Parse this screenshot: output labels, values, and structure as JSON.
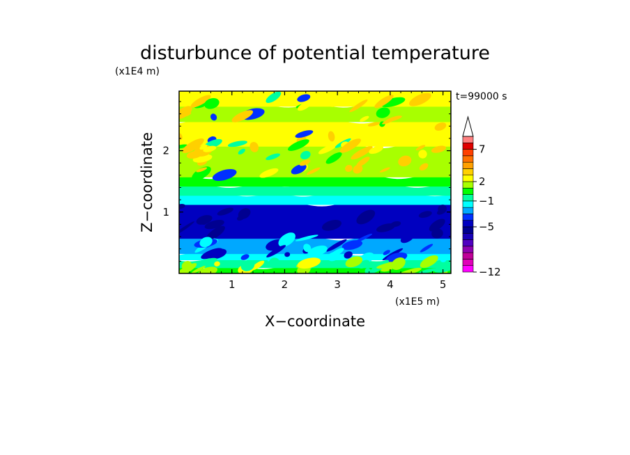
{
  "chart_data": {
    "type": "heatmap",
    "title": "disturbunce of potential temperature",
    "xlabel": "X−coordinate",
    "ylabel": "Z−coordinate",
    "x_unit": "(x1E5 m)",
    "y_unit": "(x1E4 m)",
    "time_label": "t=99000 s",
    "xlim": [
      0,
      5.15
    ],
    "ylim": [
      0,
      2.97
    ],
    "x_ticks": [
      1,
      2,
      3,
      4,
      5
    ],
    "y_ticks": [
      1,
      2
    ],
    "colorbar": {
      "levels": [
        -12,
        -11,
        -10,
        -9,
        -8,
        -7,
        -6,
        -5,
        -4,
        -3,
        -2,
        -1,
        0,
        1,
        2,
        3,
        4,
        5,
        6,
        7,
        8,
        9
      ],
      "tick_labels": [
        "−12",
        "−5",
        "−1",
        "2",
        "7"
      ],
      "tick_values": [
        -12,
        -5,
        -1,
        2,
        7
      ],
      "extend": "max",
      "colors": [
        "#ff00ff",
        "#e000b8",
        "#c00098",
        "#9000b0",
        "#5000c0",
        "#1800b8",
        "#000090",
        "#0000c0",
        "#0030ff",
        "#00a8ff",
        "#00ffff",
        "#00ffa0",
        "#00ff00",
        "#a8ff00",
        "#ffff00",
        "#ffd000",
        "#ffa000",
        "#ff7000",
        "#ff4000",
        "#e00000",
        "#ff8080",
        "#ffc0c0"
      ]
    },
    "layers": [
      {
        "z_from": 0.0,
        "z_to": 0.12,
        "value": 0.5
      },
      {
        "z_from": 0.12,
        "z_to": 0.25,
        "value": -0.5
      },
      {
        "z_from": 0.25,
        "z_to": 0.35,
        "value": -1.5
      },
      {
        "z_from": 0.35,
        "z_to": 0.6,
        "value": -2.5
      },
      {
        "z_from": 0.6,
        "z_to": 1.15,
        "value": -4.5
      },
      {
        "z_from": 1.15,
        "z_to": 1.3,
        "value": -1.5
      },
      {
        "z_from": 1.3,
        "z_to": 1.45,
        "value": -0.5
      },
      {
        "z_from": 1.45,
        "z_to": 1.6,
        "value": 0.5
      },
      {
        "z_from": 1.6,
        "z_to": 2.1,
        "value": 1.5
      },
      {
        "z_from": 2.1,
        "z_to": 2.5,
        "value": 2.5
      },
      {
        "z_from": 2.5,
        "z_to": 2.75,
        "value": 1.5
      },
      {
        "z_from": 2.75,
        "z_to": 2.97,
        "value": 2.5
      }
    ]
  }
}
